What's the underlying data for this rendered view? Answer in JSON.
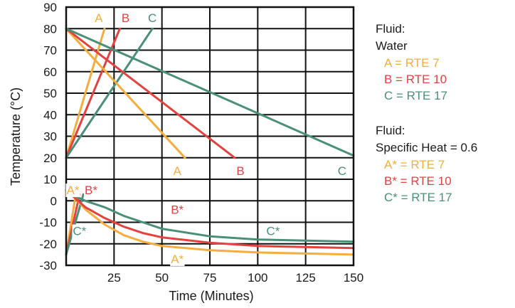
{
  "chart_data": {
    "type": "line",
    "title": "",
    "xlabel": "Time (Minutes)",
    "ylabel": "Temperature (°C)",
    "xlim": [
      0,
      150
    ],
    "ylim": [
      -30,
      90
    ],
    "x_ticks": [
      25,
      50,
      75,
      100,
      125,
      150
    ],
    "y_ticks": [
      90,
      80,
      70,
      60,
      50,
      40,
      30,
      20,
      10,
      0,
      -10,
      -20,
      -30
    ],
    "grid": true,
    "colors": {
      "A": "#f4ae3d",
      "B": "#e4413f",
      "C": "#4a9076"
    },
    "series": [
      {
        "key": "A",
        "color": "A",
        "points": [
          [
            0,
            20
          ],
          [
            20,
            80
          ]
        ]
      },
      {
        "key": "B",
        "color": "B",
        "points": [
          [
            0,
            20
          ],
          [
            28,
            80
          ]
        ]
      },
      {
        "key": "C",
        "color": "C",
        "points": [
          [
            0,
            20
          ],
          [
            45,
            80
          ]
        ]
      },
      {
        "key": "A",
        "color": "A",
        "points": [
          [
            0,
            80
          ],
          [
            62,
            20
          ]
        ]
      },
      {
        "key": "B",
        "color": "B",
        "points": [
          [
            0,
            80
          ],
          [
            88,
            20
          ]
        ]
      },
      {
        "key": "C",
        "color": "C",
        "points": [
          [
            0,
            80
          ],
          [
            150,
            21
          ]
        ]
      },
      {
        "key": "A*",
        "color": "A",
        "points": [
          [
            0,
            -25
          ],
          [
            5,
            3
          ]
        ]
      },
      {
        "key": "B*",
        "color": "B",
        "points": [
          [
            0,
            -25
          ],
          [
            7,
            3
          ]
        ]
      },
      {
        "key": "C*",
        "color": "C",
        "points": [
          [
            0,
            -25
          ],
          [
            9,
            3
          ]
        ]
      },
      {
        "key": "A*",
        "color": "A",
        "points": [
          [
            0,
            5
          ],
          [
            5,
            1
          ],
          [
            10,
            -4
          ],
          [
            20,
            -11
          ],
          [
            30,
            -16
          ],
          [
            40,
            -19
          ],
          [
            50,
            -21
          ],
          [
            75,
            -23
          ],
          [
            100,
            -24
          ],
          [
            125,
            -24.5
          ],
          [
            150,
            -25
          ]
        ]
      },
      {
        "key": "B*",
        "color": "B",
        "points": [
          [
            0,
            5
          ],
          [
            5,
            1
          ],
          [
            10,
            -3
          ],
          [
            20,
            -8
          ],
          [
            30,
            -12
          ],
          [
            40,
            -15
          ],
          [
            50,
            -17
          ],
          [
            75,
            -19.5
          ],
          [
            100,
            -21
          ],
          [
            125,
            -21.5
          ],
          [
            150,
            -22
          ]
        ]
      },
      {
        "key": "C*",
        "color": "C",
        "points": [
          [
            0,
            5
          ],
          [
            5,
            2
          ],
          [
            10,
            0
          ],
          [
            20,
            -3
          ],
          [
            30,
            -7
          ],
          [
            40,
            -10
          ],
          [
            50,
            -13
          ],
          [
            75,
            -16.5
          ],
          [
            100,
            -18
          ],
          [
            125,
            -18.5
          ],
          [
            150,
            -19
          ]
        ]
      }
    ],
    "curve_labels": [
      {
        "text": "A",
        "color": "A",
        "x": 17,
        "y": 85
      },
      {
        "text": "B",
        "color": "B",
        "x": 31,
        "y": 85
      },
      {
        "text": "C",
        "color": "C",
        "x": 45,
        "y": 85
      },
      {
        "text": "A",
        "color": "A",
        "x": 58,
        "y": 14
      },
      {
        "text": "B",
        "color": "B",
        "x": 91,
        "y": 14
      },
      {
        "text": "C",
        "color": "C",
        "x": 144,
        "y": 14
      },
      {
        "text": "A*",
        "color": "A",
        "x": 3.5,
        "y": 5
      },
      {
        "text": "B*",
        "color": "B",
        "x": 13,
        "y": 5
      },
      {
        "text": "C*",
        "color": "C",
        "x": 7,
        "y": -14
      },
      {
        "text": "B*",
        "color": "B",
        "x": 58,
        "y": -4
      },
      {
        "text": "C*",
        "color": "C",
        "x": 108,
        "y": -14
      },
      {
        "text": "A*",
        "color": "A",
        "x": 58,
        "y": -27
      }
    ],
    "legend": [
      {
        "heading": "Fluid:",
        "subheading": "Water",
        "entries": [
          {
            "text": "A = RTE 7",
            "color": "A"
          },
          {
            "text": "B = RTE 10",
            "color": "B"
          },
          {
            "text": "C = RTE 17",
            "color": "C"
          }
        ]
      },
      {
        "heading": "Fluid:",
        "subheading": "Specific Heat = 0.6",
        "entries": [
          {
            "text": "A* = RTE 7",
            "color": "A"
          },
          {
            "text": "B* = RTE 10",
            "color": "B"
          },
          {
            "text": "C* = RTE 17",
            "color": "C"
          }
        ]
      }
    ]
  }
}
